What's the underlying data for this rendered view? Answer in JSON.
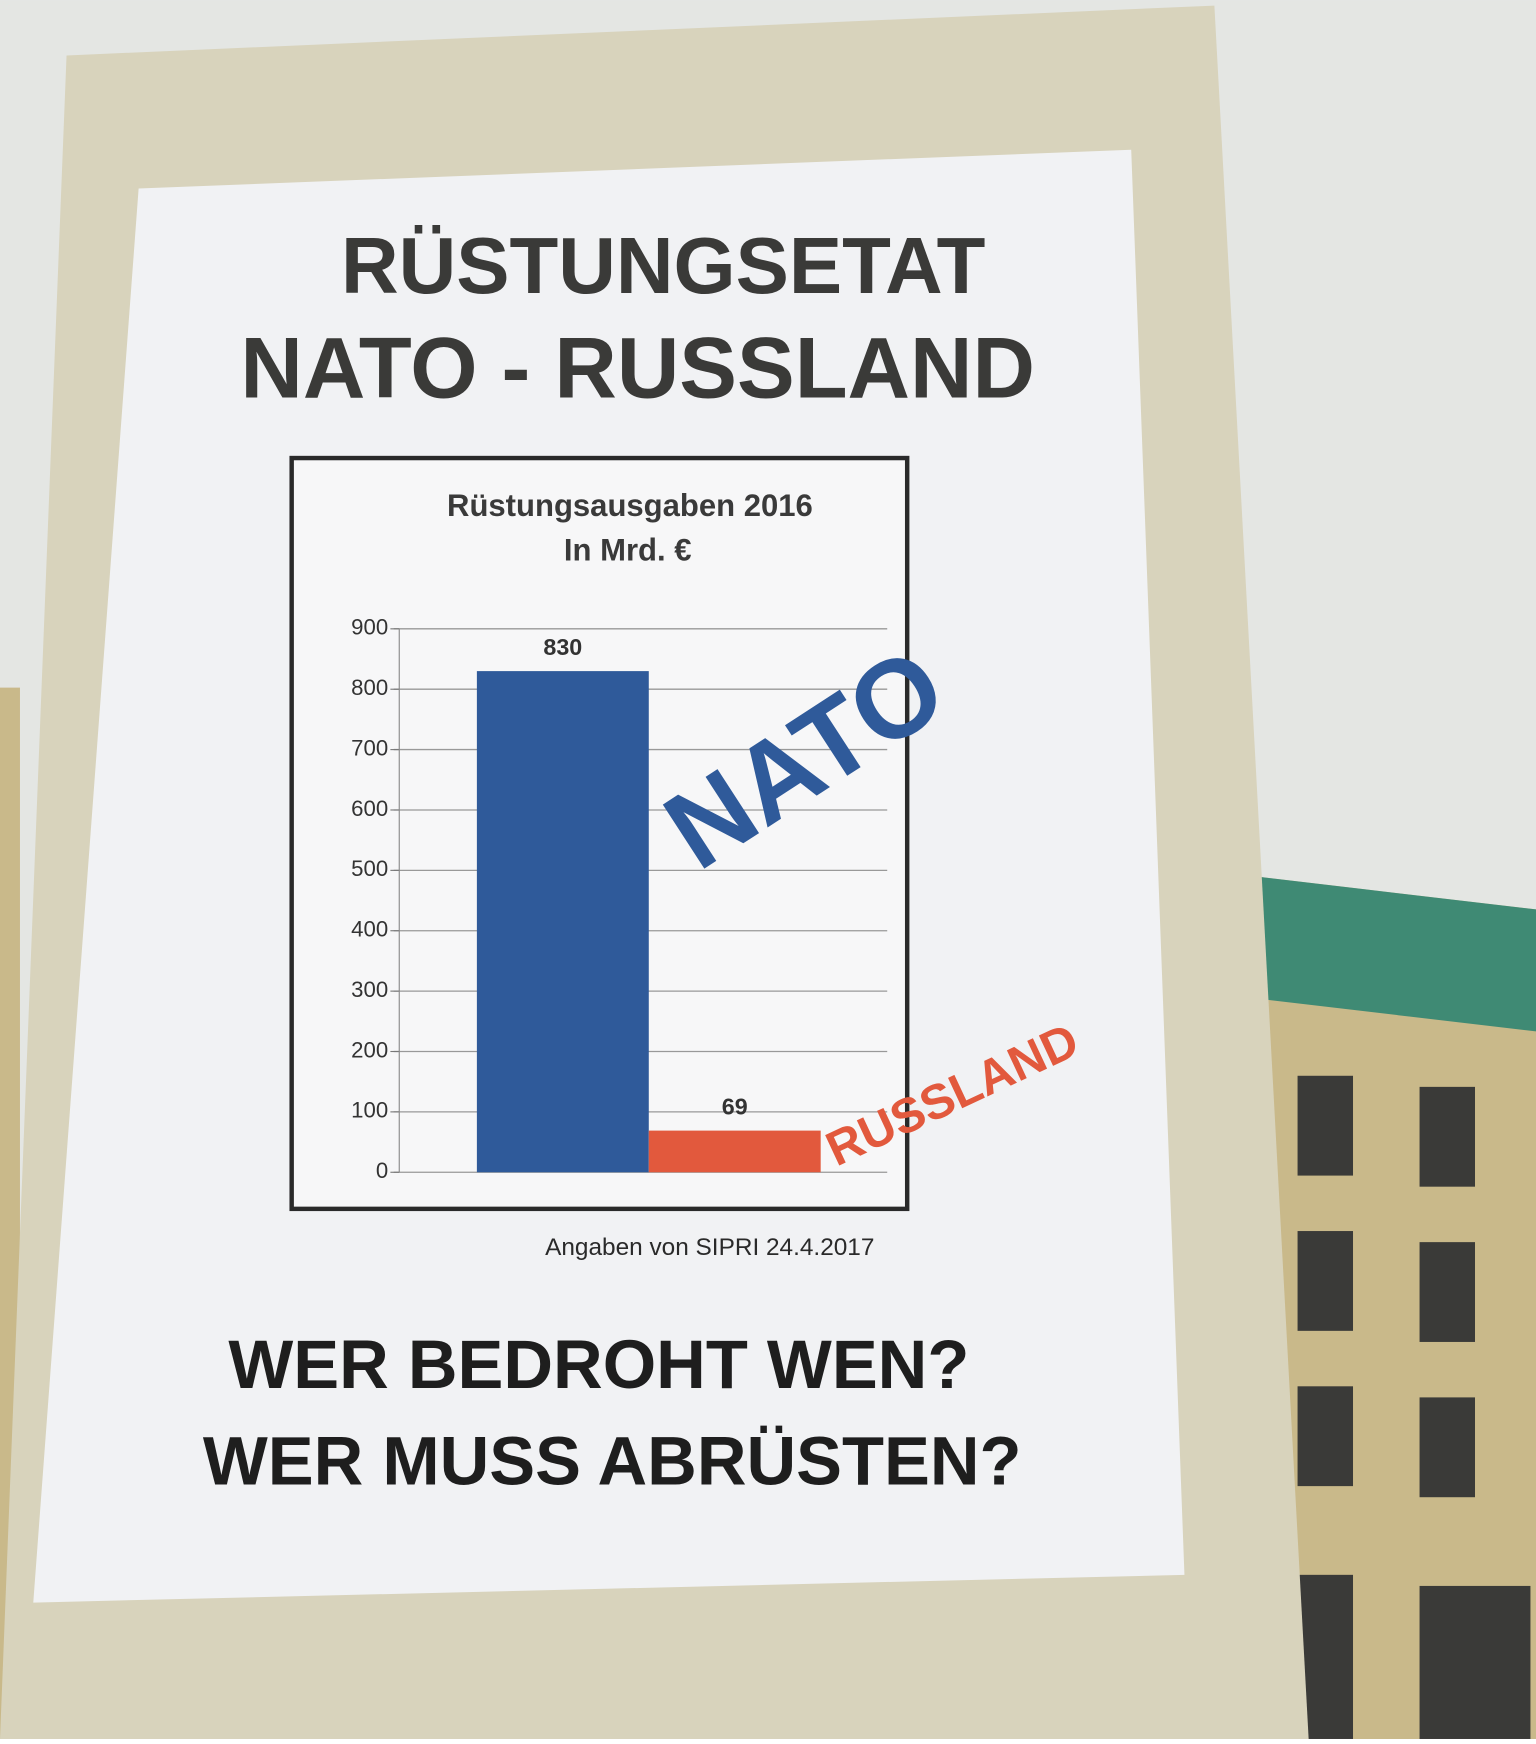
{
  "poster": {
    "headline": [
      "RÜSTUNGSETAT",
      "NATO - RUSSLAND"
    ],
    "source": "Angaben von SIPRI 24.4.2017",
    "slogan": [
      "WER BEDROHT WEN?",
      "WER MUSS ABRÜSTEN?"
    ]
  },
  "chart_data": {
    "type": "bar",
    "title": "Rüstungsausgaben 2016",
    "subtitle": "In Mrd. €",
    "categories": [
      null
    ],
    "series": [
      {
        "name": "NATO",
        "color": "#2f5a9a",
        "values": [
          830
        ]
      },
      {
        "name": "RUSSLAND",
        "color": "#e2593d",
        "values": [
          69
        ]
      }
    ],
    "ylim": [
      0,
      900
    ],
    "yticks": [
      0,
      100,
      200,
      300,
      400,
      500,
      600,
      700,
      800,
      900
    ],
    "grid": true
  }
}
